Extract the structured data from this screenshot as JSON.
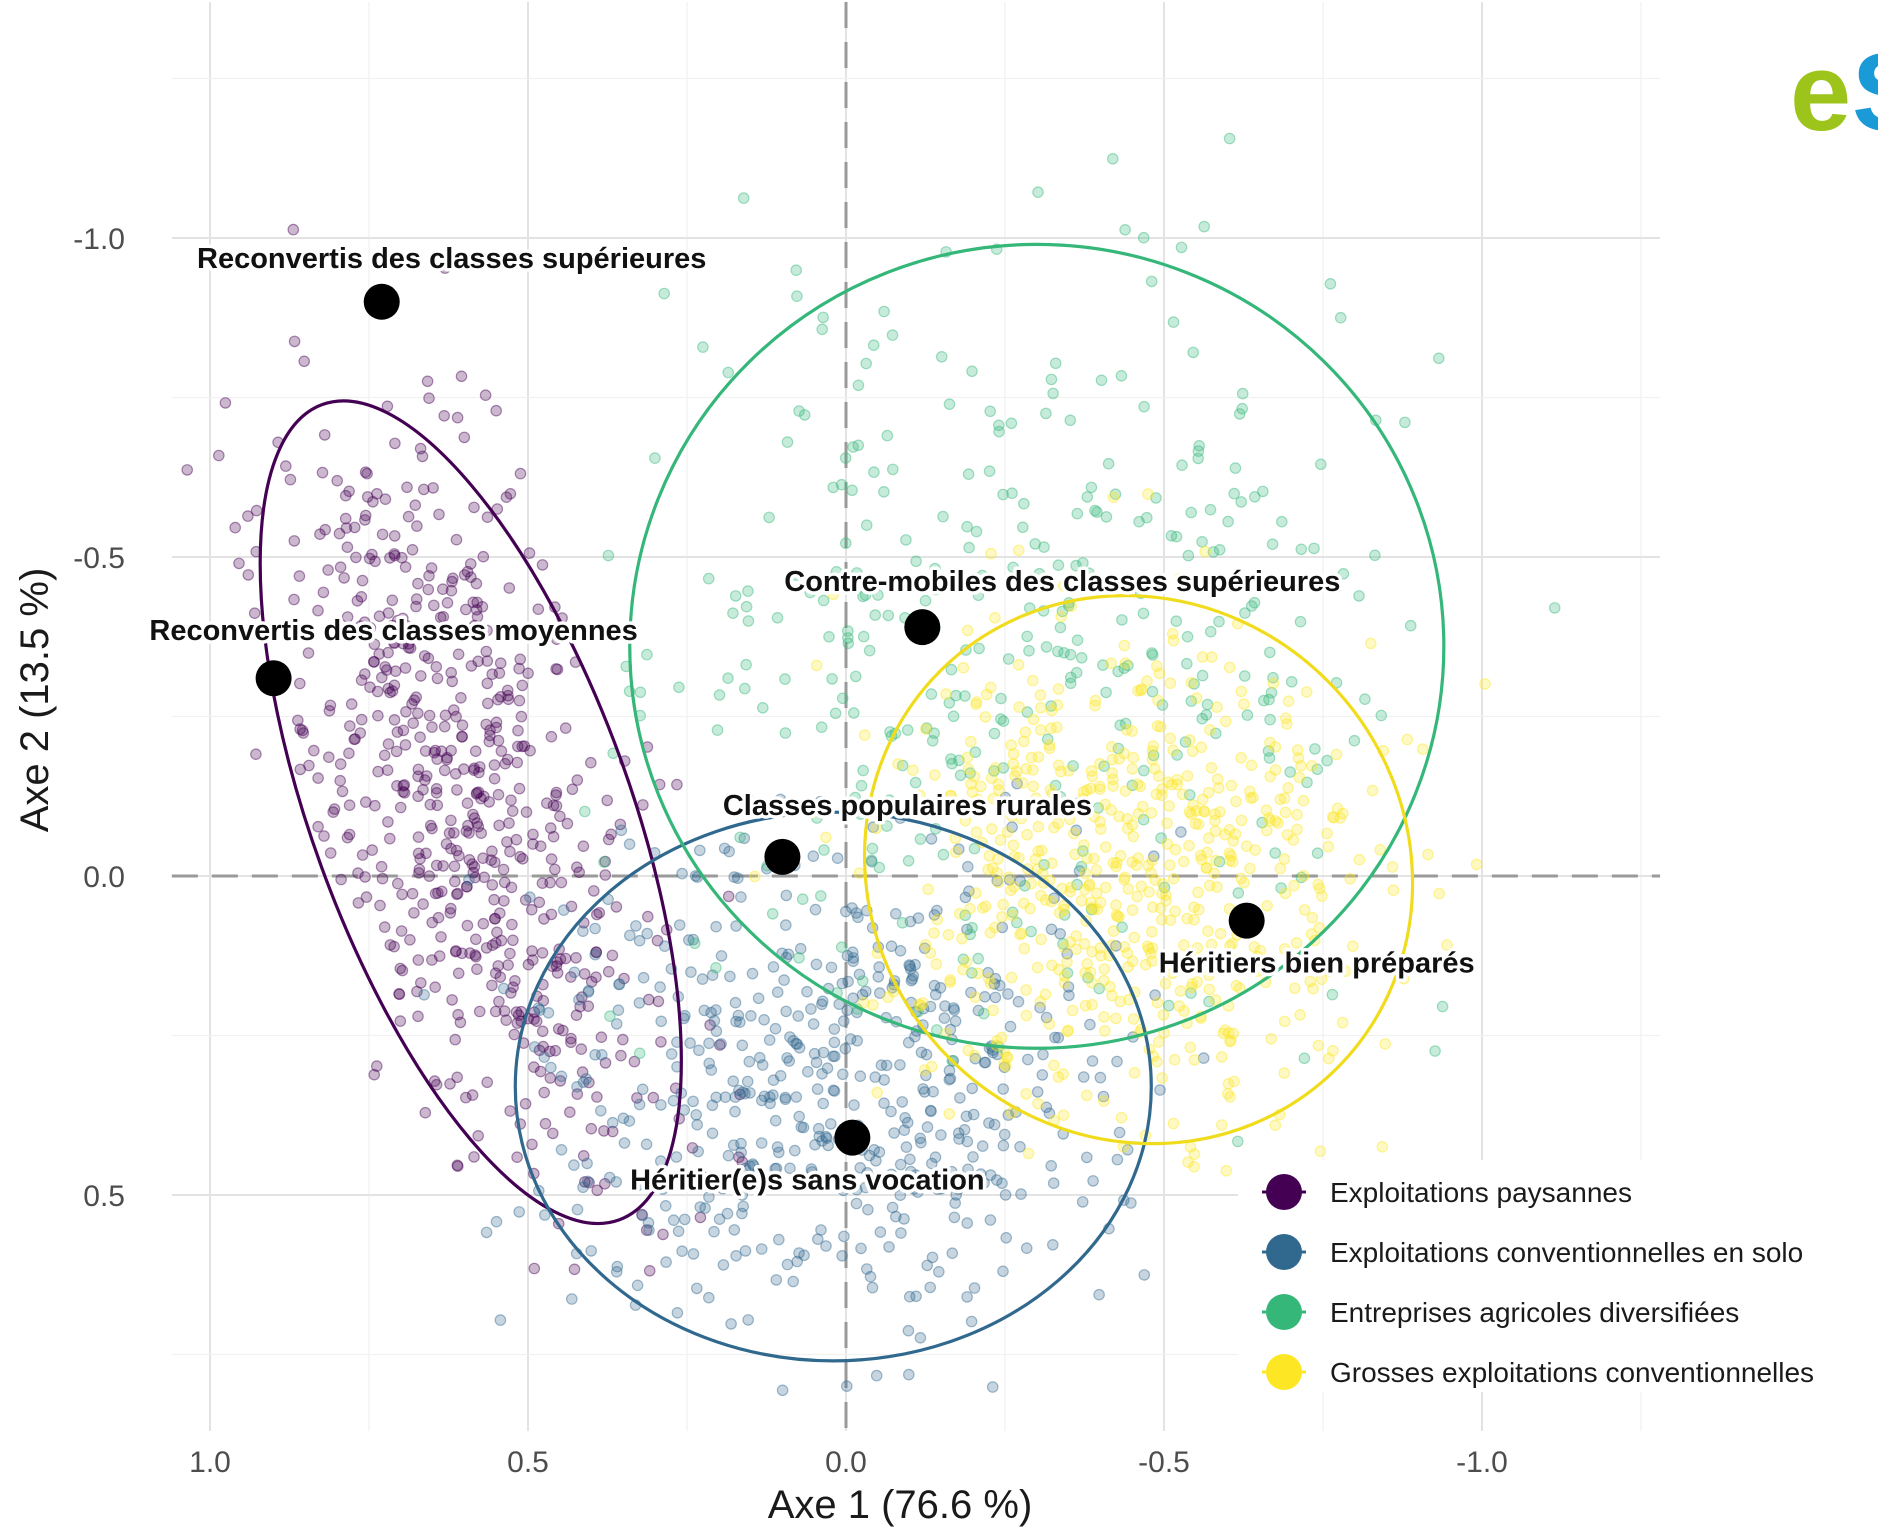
{
  "chart_data": {
    "type": "scatter",
    "title": "",
    "xlabel": "Axe 1 (76.6 %)",
    "ylabel": "Axe 2 (13.5 %)",
    "x_reversed": true,
    "y_reversed": true,
    "xlim": [
      1.06,
      -1.28
    ],
    "ylim": [
      -1.37,
      0.87
    ],
    "x_ticks": [
      {
        "value": 1.0,
        "label": "1.0"
      },
      {
        "value": 0.5,
        "label": "0.5"
      },
      {
        "value": 0.0,
        "label": "0.0"
      },
      {
        "value": -0.5,
        "label": "-0.5"
      },
      {
        "value": -1.0,
        "label": "-1.0"
      }
    ],
    "y_ticks": [
      {
        "value": -1.0,
        "label": "-1.0"
      },
      {
        "value": -0.5,
        "label": "-0.5"
      },
      {
        "value": 0.0,
        "label": "0.0"
      },
      {
        "value": 0.5,
        "label": "0.5"
      }
    ],
    "grid": true,
    "reference_lines": {
      "x": 0,
      "y": 0,
      "style": "dashed"
    },
    "legend_position": "bottom-right",
    "series": [
      {
        "name": "Exploitations paysannes",
        "color": "#440154",
        "ellipse": {
          "cx": 0.59,
          "cy": -0.1,
          "rx": 0.25,
          "ry": 0.68,
          "angle": -20
        }
      },
      {
        "name": "Exploitations conventionnelles en solo",
        "color": "#31688e",
        "ellipse": {
          "cx": 0.02,
          "cy": 0.33,
          "rx": 0.5,
          "ry": 0.43,
          "angle": 0
        }
      },
      {
        "name": "Entreprises agricoles diversifiées",
        "color": "#35b779",
        "ellipse": {
          "cx": -0.3,
          "cy": -0.36,
          "rx": 0.64,
          "ry": 0.63,
          "angle": 0
        }
      },
      {
        "name": "Grosses exploitations conventionnelles",
        "color": "#fde725",
        "ellipse": {
          "cx": -0.46,
          "cy": -0.01,
          "rx": 0.42,
          "ry": 0.44,
          "angle": -45
        }
      }
    ],
    "individuals": [
      {
        "label": "Reconvertis des classes supérieures",
        "x": 0.73,
        "y": -0.9
      },
      {
        "label": "Reconvertis des classes moyennes",
        "x": 0.9,
        "y": -0.31
      },
      {
        "label": "Contre-mobiles des classes supérieures",
        "x": -0.12,
        "y": -0.39
      },
      {
        "label": "Classes populaires rurales",
        "x": 0.1,
        "y": -0.03
      },
      {
        "label": "Héritiers bien préparés",
        "x": -0.63,
        "y": 0.07
      },
      {
        "label": "Héritier(e)s sans vocation",
        "x": -0.01,
        "y": 0.41
      }
    ]
  }
}
